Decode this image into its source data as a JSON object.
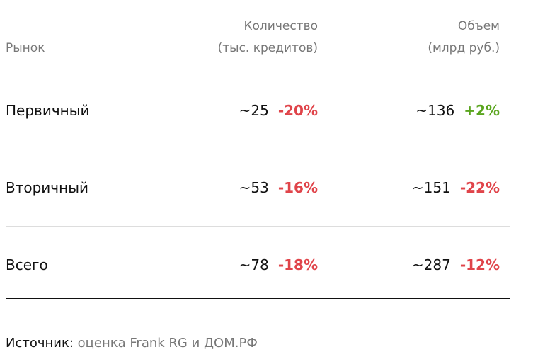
{
  "table": {
    "headers": [
      [
        "Рынок"
      ],
      [
        "Количество",
        "(тыс. кредитов)"
      ],
      [
        "Объем",
        "(млрд руб.)"
      ]
    ],
    "rows": [
      [
        [
          "Первичный"
        ],
        [
          "~25",
          "-20%"
        ],
        [
          "~136",
          "+2%"
        ]
      ],
      [
        [
          "Вторичный"
        ],
        [
          "~53",
          "-16%"
        ],
        [
          "~151",
          "-22%"
        ]
      ],
      [
        [
          "Всего"
        ],
        [
          "~78",
          "-18%"
        ],
        [
          "~287",
          "-12%"
        ]
      ]
    ]
  },
  "source": {
    "label": "Источник:",
    "text": "оценка Frank RG и ДОМ.РФ"
  }
}
